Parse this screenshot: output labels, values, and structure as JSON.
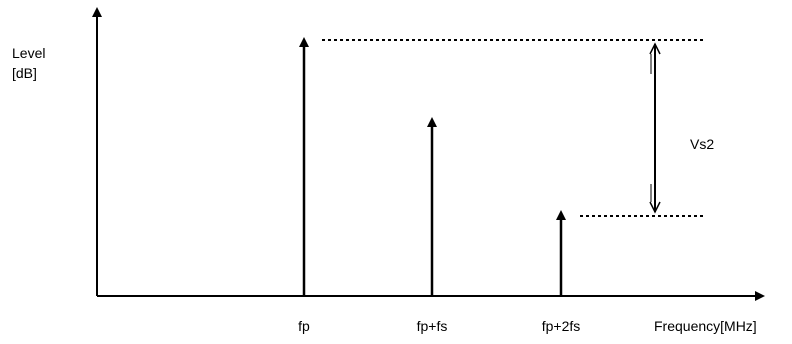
{
  "axes": {
    "y_label_line1": "Level",
    "y_label_line2": "[dB]",
    "x_label": "Frequency[MHz]"
  },
  "spectral_lines": [
    {
      "label": "fp"
    },
    {
      "label": "fp+fs"
    },
    {
      "label": "fp+2fs"
    }
  ],
  "measurement": {
    "label": "Vs2"
  }
}
